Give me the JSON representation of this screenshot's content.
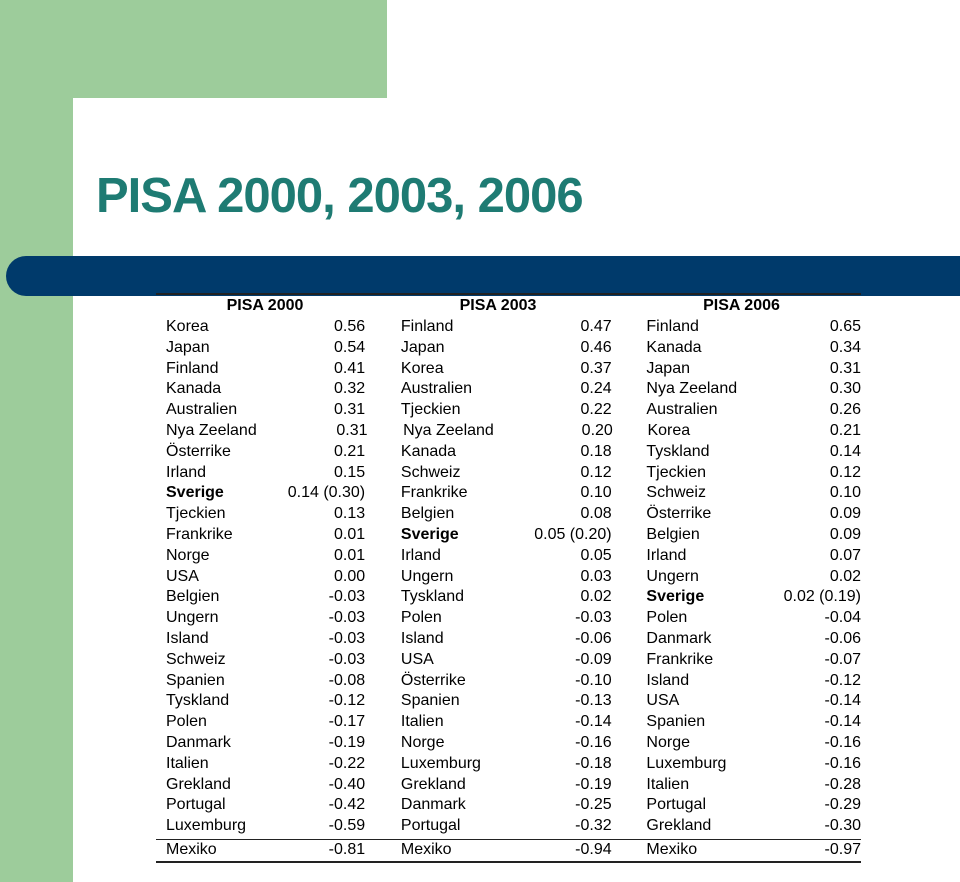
{
  "title": "PISA 2000, 2003, 2006",
  "table": {
    "headers": [
      "PISA 2000",
      "PISA 2003",
      "PISA 2006"
    ],
    "rows": [
      [
        [
          "Korea",
          "0.56"
        ],
        [
          "Finland",
          "0.47"
        ],
        [
          "Finland",
          "0.65"
        ]
      ],
      [
        [
          "Japan",
          "0.54"
        ],
        [
          "Japan",
          "0.46"
        ],
        [
          "Kanada",
          "0.34"
        ]
      ],
      [
        [
          "Finland",
          "0.41"
        ],
        [
          "Korea",
          "0.37"
        ],
        [
          "Japan",
          "0.31"
        ]
      ],
      [
        [
          "Kanada",
          "0.32"
        ],
        [
          "Australien",
          "0.24"
        ],
        [
          "Nya Zeeland",
          "0.30"
        ]
      ],
      [
        [
          "Australien",
          "0.31"
        ],
        [
          "Tjeckien",
          "0.22"
        ],
        [
          "Australien",
          "0.26"
        ]
      ],
      [
        [
          "Nya Zeeland",
          "0.31"
        ],
        [
          "Nya Zeeland",
          "0.20"
        ],
        [
          "Korea",
          "0.21"
        ]
      ],
      [
        [
          "Österrike",
          "0.21"
        ],
        [
          "Kanada",
          "0.18"
        ],
        [
          "Tyskland",
          "0.14"
        ]
      ],
      [
        [
          "Irland",
          "0.15"
        ],
        [
          "Schweiz",
          "0.12"
        ],
        [
          "Tjeckien",
          "0.12"
        ]
      ],
      [
        [
          "Sverige",
          "0.14 (0.30)"
        ],
        [
          "Frankrike",
          "0.10"
        ],
        [
          "Schweiz",
          "0.10"
        ]
      ],
      [
        [
          "Tjeckien",
          "0.13"
        ],
        [
          "Belgien",
          "0.08"
        ],
        [
          "Österrike",
          "0.09"
        ]
      ],
      [
        [
          "Frankrike",
          "0.01"
        ],
        [
          "Sverige",
          "0.05 (0.20)"
        ],
        [
          "Belgien",
          "0.09"
        ]
      ],
      [
        [
          "Norge",
          "0.01"
        ],
        [
          "Irland",
          "0.05"
        ],
        [
          "Irland",
          "0.07"
        ]
      ],
      [
        [
          "USA",
          "0.00"
        ],
        [
          "Ungern",
          "0.03"
        ],
        [
          "Ungern",
          "0.02"
        ]
      ],
      [
        [
          "Belgien",
          "-0.03"
        ],
        [
          "Tyskland",
          "0.02"
        ],
        [
          "Sverige",
          "0.02 (0.19)"
        ]
      ],
      [
        [
          "Ungern",
          "-0.03"
        ],
        [
          "Polen",
          "-0.03"
        ],
        [
          "Polen",
          "-0.04"
        ]
      ],
      [
        [
          "Island",
          "-0.03"
        ],
        [
          "Island",
          "-0.06"
        ],
        [
          "Danmark",
          "-0.06"
        ]
      ],
      [
        [
          "Schweiz",
          "-0.03"
        ],
        [
          "USA",
          "-0.09"
        ],
        [
          "Frankrike",
          "-0.07"
        ]
      ],
      [
        [
          "Spanien",
          "-0.08"
        ],
        [
          "Österrike",
          "-0.10"
        ],
        [
          "Island",
          "-0.12"
        ]
      ],
      [
        [
          "Tyskland",
          "-0.12"
        ],
        [
          "Spanien",
          "-0.13"
        ],
        [
          "USA",
          "-0.14"
        ]
      ],
      [
        [
          "Polen",
          "-0.17"
        ],
        [
          "Italien",
          "-0.14"
        ],
        [
          "Spanien",
          "-0.14"
        ]
      ],
      [
        [
          "Danmark",
          "-0.19"
        ],
        [
          "Norge",
          "-0.16"
        ],
        [
          "Norge",
          "-0.16"
        ]
      ],
      [
        [
          "Italien",
          "-0.22"
        ],
        [
          "Luxemburg",
          "-0.18"
        ],
        [
          "Luxemburg",
          "-0.16"
        ]
      ],
      [
        [
          "Grekland",
          "-0.40"
        ],
        [
          "Grekland",
          "-0.19"
        ],
        [
          "Italien",
          "-0.28"
        ]
      ],
      [
        [
          "Portugal",
          "-0.42"
        ],
        [
          "Danmark",
          "-0.25"
        ],
        [
          "Portugal",
          "-0.29"
        ]
      ],
      [
        [
          "Luxemburg",
          "-0.59"
        ],
        [
          "Portugal",
          "-0.32"
        ],
        [
          "Grekland",
          "-0.30"
        ]
      ],
      [
        [
          "Mexiko",
          "-0.81"
        ],
        [
          "Mexiko",
          "-0.94"
        ],
        [
          "Mexiko",
          "-0.97"
        ]
      ]
    ],
    "highlight": "Sverige"
  },
  "colors": {
    "accent_green": "#9dcc9b",
    "title_teal": "#1e7b73",
    "band_navy": "#003a6b"
  }
}
